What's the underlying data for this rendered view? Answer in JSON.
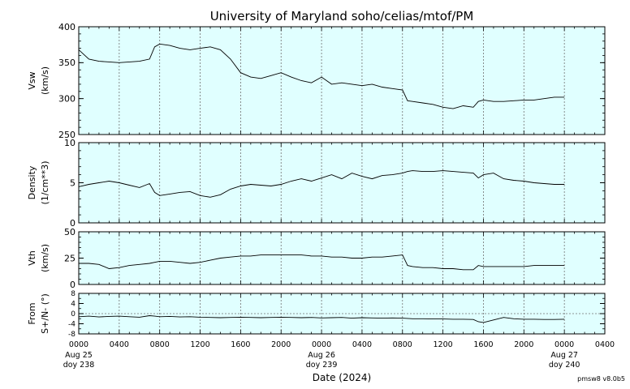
{
  "chart_data": {
    "type": "line",
    "title": "University of Maryland  soho/celias/mtof/PM",
    "xlabel": "Date (2024)",
    "footer": "pmsw8 v8.0b5",
    "x_ticks": [
      "0000",
      "0400",
      "0800",
      "1200",
      "1600",
      "2000",
      "0000",
      "0400",
      "0800",
      "1200",
      "1600",
      "2000",
      "0000",
      "0400"
    ],
    "date_labels": [
      {
        "tick_index": 0,
        "date": "Aug 25",
        "doy": "doy 238"
      },
      {
        "tick_index": 6,
        "date": "Aug 26",
        "doy": "doy 239"
      },
      {
        "tick_index": 12,
        "date": "Aug 27",
        "doy": "doy 240"
      }
    ],
    "x_range_hours": [
      0,
      52
    ],
    "data_end_hour": 48,
    "panels": [
      {
        "name": "vsw",
        "ylabel": [
          "Vsw",
          "(km/s)"
        ],
        "ylim": [
          250,
          400
        ],
        "yticks": [
          250,
          300,
          350,
          400
        ],
        "minor_step": 10,
        "grid": "vertical-dotted",
        "series": [
          {
            "x": [
              0,
              1,
              2,
              3,
              4,
              5,
              6,
              7,
              7.5,
              8,
              9,
              10,
              11,
              12,
              13,
              14,
              15,
              16,
              17,
              18,
              19,
              20,
              21,
              22,
              23,
              24,
              25,
              26,
              27,
              28,
              29,
              30,
              31,
              32,
              32.5,
              33,
              34,
              35,
              36,
              37,
              38,
              39,
              39.5,
              40,
              41,
              42,
              43,
              44,
              45,
              46,
              47,
              48
            ],
            "y": [
              368,
              355,
              352,
              351,
              350,
              351,
              352,
              355,
              372,
              376,
              374,
              370,
              368,
              370,
              372,
              368,
              355,
              336,
              330,
              328,
              332,
              336,
              330,
              325,
              322,
              330,
              320,
              322,
              320,
              318,
              320,
              316,
              314,
              312,
              297,
              296,
              294,
              292,
              288,
              286,
              290,
              288,
              296,
              298,
              296,
              296,
              297,
              298,
              298,
              300,
              302,
              302
            ]
          }
        ]
      },
      {
        "name": "density",
        "ylabel": [
          "Density",
          "(1/cm**3)"
        ],
        "ylim": [
          0,
          10
        ],
        "yticks": [
          0,
          5,
          10
        ],
        "minor_step": 1,
        "grid": "vertical-dotted",
        "series": [
          {
            "x": [
              0,
              1,
              2,
              3,
              4,
              5,
              6,
              7,
              7.5,
              8,
              9,
              10,
              11,
              12,
              13,
              14,
              15,
              16,
              17,
              18,
              19,
              20,
              21,
              22,
              23,
              24,
              25,
              26,
              27,
              28,
              29,
              30,
              31,
              32,
              32.5,
              33,
              34,
              35,
              36,
              37,
              38,
              39,
              39.5,
              40,
              41,
              42,
              43,
              44,
              45,
              46,
              47,
              48
            ],
            "y": [
              4.5,
              4.8,
              5.0,
              5.2,
              5.0,
              4.7,
              4.4,
              4.9,
              3.8,
              3.4,
              3.6,
              3.8,
              3.9,
              3.4,
              3.2,
              3.5,
              4.2,
              4.6,
              4.8,
              4.7,
              4.6,
              4.8,
              5.2,
              5.5,
              5.2,
              5.6,
              6.0,
              5.5,
              6.2,
              5.8,
              5.5,
              5.9,
              6.0,
              6.2,
              6.4,
              6.5,
              6.4,
              6.4,
              6.5,
              6.4,
              6.3,
              6.2,
              5.6,
              6.0,
              6.2,
              5.5,
              5.3,
              5.2,
              5.0,
              4.9,
              4.8,
              4.8
            ]
          }
        ]
      },
      {
        "name": "vth",
        "ylabel": [
          "Vth",
          "(km/s)"
        ],
        "ylim": [
          0,
          50
        ],
        "yticks": [
          0,
          25,
          50
        ],
        "minor_step": 5,
        "grid": "vertical-dotted",
        "series": [
          {
            "x": [
              0,
              1,
              2,
              3,
              4,
              5,
              6,
              7,
              7.5,
              8,
              9,
              10,
              11,
              12,
              13,
              14,
              15,
              16,
              17,
              18,
              19,
              20,
              21,
              22,
              23,
              24,
              25,
              26,
              27,
              28,
              29,
              30,
              31,
              32,
              32.5,
              33,
              34,
              35,
              36,
              37,
              38,
              39,
              39.5,
              40,
              41,
              42,
              43,
              44,
              45,
              46,
              47,
              48
            ],
            "y": [
              20,
              20,
              19,
              15,
              16,
              18,
              19,
              20,
              21,
              22,
              22,
              21,
              20,
              21,
              23,
              25,
              26,
              27,
              27,
              28,
              28,
              28,
              28,
              28,
              27,
              27,
              26,
              26,
              25,
              25,
              26,
              26,
              27,
              28,
              18,
              17,
              16,
              16,
              15,
              15,
              14,
              14,
              18,
              17,
              17,
              17,
              17,
              17,
              18,
              18,
              18,
              18
            ]
          }
        ]
      },
      {
        "name": "flow-angle",
        "ylabel": [
          "From",
          "S+/N- (°)"
        ],
        "ylim": [
          -8,
          8
        ],
        "yticks": [
          -8,
          -4,
          0,
          4,
          8
        ],
        "minor_step": 2,
        "grid": "vertical-dotted",
        "zero_line": true,
        "series": [
          {
            "x": [
              0,
              1,
              2,
              3,
              4,
              5,
              6,
              7,
              7.5,
              8,
              9,
              10,
              11,
              12,
              13,
              14,
              15,
              16,
              17,
              18,
              19,
              20,
              21,
              22,
              23,
              24,
              25,
              26,
              27,
              28,
              29,
              30,
              31,
              32,
              32.5,
              33,
              34,
              35,
              36,
              37,
              38,
              39,
              39.5,
              40,
              41,
              42,
              43,
              44,
              45,
              46,
              47,
              48
            ],
            "y": [
              -1.2,
              -1.0,
              -1.3,
              -1.1,
              -1.0,
              -1.2,
              -1.4,
              -0.8,
              -1.0,
              -1.2,
              -1.1,
              -1.3,
              -1.2,
              -1.4,
              -1.5,
              -1.6,
              -1.5,
              -1.4,
              -1.5,
              -1.6,
              -1.5,
              -1.4,
              -1.5,
              -1.6,
              -1.5,
              -1.7,
              -1.6,
              -1.5,
              -1.8,
              -1.6,
              -1.7,
              -1.8,
              -1.7,
              -1.8,
              -1.9,
              -2.0,
              -2.0,
              -2.1,
              -2.1,
              -2.2,
              -2.2,
              -2.3,
              -3.2,
              -3.5,
              -2.5,
              -1.5,
              -2.0,
              -2.2,
              -2.2,
              -2.3,
              -2.3,
              -2.2
            ]
          }
        ]
      }
    ]
  }
}
